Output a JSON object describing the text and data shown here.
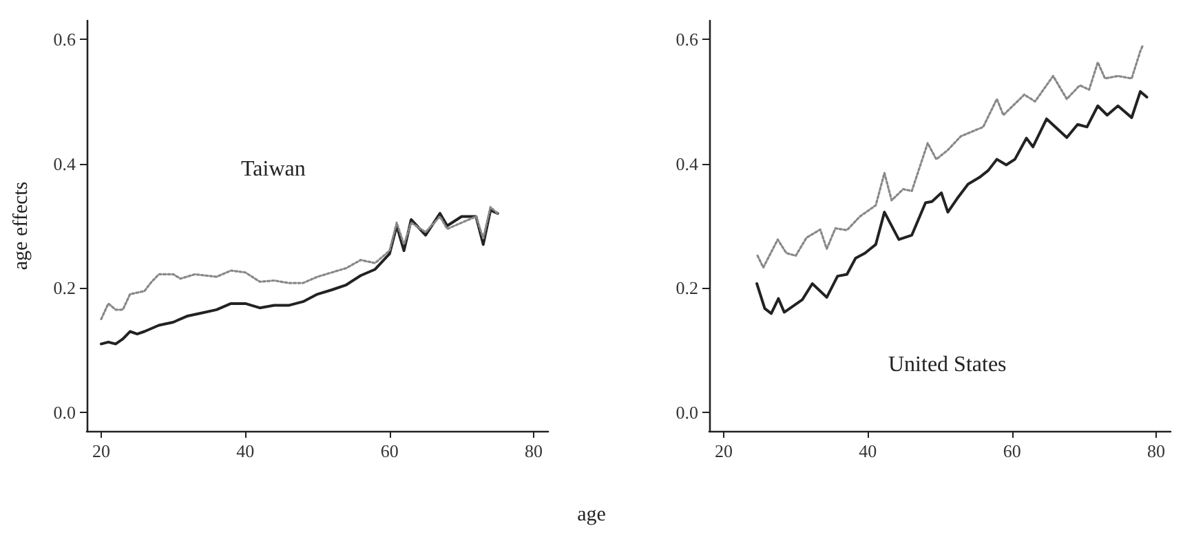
{
  "chart_data": [
    {
      "type": "line",
      "ylabel": "age effects",
      "xlabel": "age",
      "annotations": [
        "Taiwan"
      ],
      "xlim": [
        18,
        82
      ],
      "xticks": [
        20,
        40,
        60,
        80
      ],
      "ylim": [
        -0.03,
        0.63
      ],
      "yticks": [
        {
          "value": 0,
          "label": "0.0"
        },
        {
          "value": 0.2,
          "label": "0.2"
        },
        {
          "value": 0.4,
          "label": "0.4"
        },
        {
          "value": 0.6,
          "label": "0.6"
        }
      ],
      "grid": false,
      "marker": "none",
      "series": [
        {
          "color": "#222222",
          "line_style": "solid",
          "x": [
            20,
            21,
            22,
            23,
            24,
            25,
            26,
            28,
            30,
            32,
            34,
            36,
            38,
            40,
            42,
            44,
            46,
            48,
            50,
            52,
            54,
            56,
            58,
            60,
            61,
            62,
            63,
            65,
            67,
            68,
            70,
            72,
            73,
            74,
            75
          ],
          "values": [
            0.11,
            0.113,
            0.11,
            0.118,
            0.13,
            0.126,
            0.13,
            0.14,
            0.145,
            0.155,
            0.16,
            0.165,
            0.175,
            0.175,
            0.168,
            0.172,
            0.172,
            0.178,
            0.19,
            0.197,
            0.205,
            0.22,
            0.23,
            0.255,
            0.3,
            0.26,
            0.31,
            0.285,
            0.32,
            0.3,
            0.315,
            0.315,
            0.27,
            0.325,
            0.32
          ]
        },
        {
          "color": "#888888",
          "line_style": "dotted",
          "x": [
            20,
            21,
            22,
            23,
            24,
            26,
            27,
            28,
            30,
            31,
            33,
            36,
            38,
            40,
            42,
            44,
            46,
            48,
            50,
            52,
            54,
            56,
            58,
            60,
            61,
            62,
            63,
            65,
            67,
            68,
            70,
            72,
            73,
            74,
            75
          ],
          "values": [
            0.15,
            0.175,
            0.165,
            0.165,
            0.19,
            0.195,
            0.21,
            0.222,
            0.222,
            0.215,
            0.222,
            0.218,
            0.228,
            0.225,
            0.21,
            0.212,
            0.208,
            0.208,
            0.218,
            0.225,
            0.232,
            0.245,
            0.24,
            0.26,
            0.305,
            0.27,
            0.305,
            0.29,
            0.315,
            0.295,
            0.305,
            0.315,
            0.28,
            0.33,
            0.32
          ]
        }
      ]
    },
    {
      "type": "line",
      "annotations": [
        "United States"
      ],
      "xlim": [
        18,
        82
      ],
      "xticks": [
        20,
        40,
        60,
        80
      ],
      "ylim": [
        -0.03,
        0.63
      ],
      "yticks": [
        {
          "value": 0,
          "label": "0.0"
        },
        {
          "value": 0.2,
          "label": "0.2"
        },
        {
          "value": 0.4,
          "label": "0.4"
        },
        {
          "value": 0.6,
          "label": "0.6"
        }
      ],
      "grid": false,
      "marker": "none",
      "series": [
        {
          "color": "#222222",
          "line_style": "solid",
          "x": [
            24.6,
            25.7,
            26.6,
            27.6,
            28.4,
            30.9,
            32.3,
            34.3,
            35.8,
            37.1,
            38.3,
            39.6,
            41.1,
            42.3,
            44.3,
            46.1,
            48,
            48.9,
            50.2,
            51.1,
            52.4,
            53.9,
            55.5,
            56.7,
            57.9,
            59.2,
            60.4,
            62,
            62.9,
            64.8,
            67.6,
            69.1,
            70.4,
            71.9,
            73.2,
            74.7,
            76.6,
            77.8,
            78.7
          ],
          "values": [
            0.207,
            0.167,
            0.159,
            0.183,
            0.161,
            0.181,
            0.207,
            0.185,
            0.219,
            0.222,
            0.248,
            0.256,
            0.27,
            0.322,
            0.278,
            0.285,
            0.337,
            0.339,
            0.353,
            0.322,
            0.344,
            0.367,
            0.378,
            0.389,
            0.407,
            0.398,
            0.407,
            0.441,
            0.427,
            0.472,
            0.442,
            0.463,
            0.459,
            0.493,
            0.478,
            0.493,
            0.474,
            0.516,
            0.507
          ]
        },
        {
          "color": "#888888",
          "line_style": "dotted",
          "x": [
            24.7,
            25.5,
            27.5,
            28.7,
            30,
            31.5,
            33.4,
            34.3,
            35.5,
            37.1,
            38.9,
            41.1,
            42.3,
            43.3,
            44.9,
            46.1,
            48.3,
            49.5,
            51.1,
            52.9,
            56,
            57.9,
            58.8,
            61.7,
            63.2,
            65.7,
            67.6,
            69.4,
            70.7,
            71.9,
            72.9,
            74.7,
            76.6,
            77.2,
            77.8,
            78.1
          ],
          "values": [
            0.252,
            0.233,
            0.278,
            0.256,
            0.252,
            0.281,
            0.294,
            0.263,
            0.296,
            0.293,
            0.315,
            0.333,
            0.385,
            0.341,
            0.359,
            0.356,
            0.433,
            0.407,
            0.422,
            0.444,
            0.459,
            0.504,
            0.478,
            0.511,
            0.5,
            0.541,
            0.504,
            0.526,
            0.519,
            0.563,
            0.537,
            0.541,
            0.537,
            0.559,
            0.581,
            0.589
          ]
        }
      ]
    }
  ]
}
